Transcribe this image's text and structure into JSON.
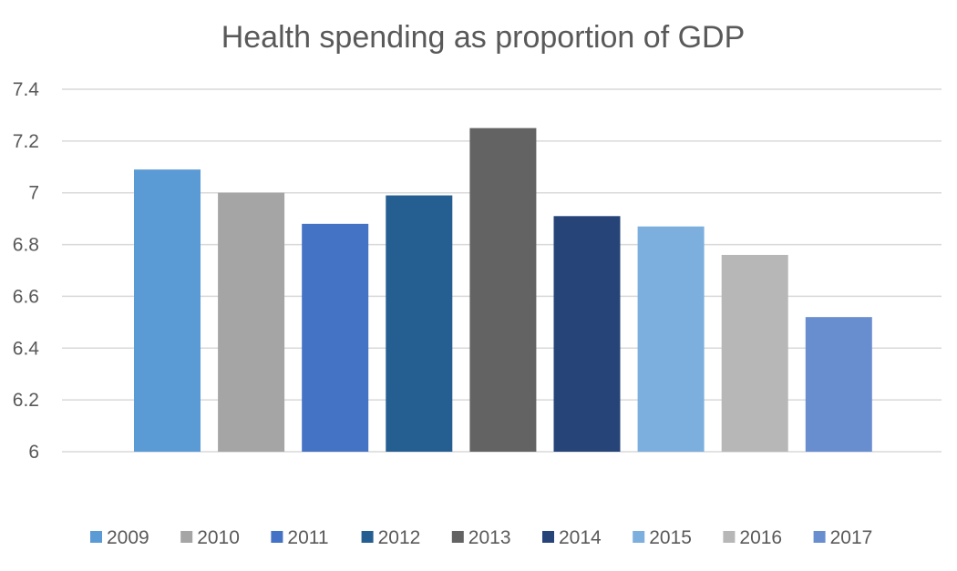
{
  "chart_data": {
    "type": "bar",
    "title": "Health spending as proportion of GDP",
    "xlabel": "",
    "ylabel": "",
    "ylim": [
      6,
      7.4
    ],
    "yticks": [
      6,
      6.2,
      6.4,
      6.6,
      6.8,
      7,
      7.2,
      7.4
    ],
    "ytick_labels": [
      "6",
      "6.2",
      "6.4",
      "6.6",
      "6.8",
      "7",
      "7.2",
      "7.4"
    ],
    "grid": true,
    "legend_position": "bottom",
    "series": [
      {
        "name": "2009",
        "value": 7.09,
        "color": "#5b9bd5"
      },
      {
        "name": "2010",
        "value": 7.0,
        "color": "#a5a5a5"
      },
      {
        "name": "2011",
        "value": 6.88,
        "color": "#4472c4"
      },
      {
        "name": "2012",
        "value": 6.99,
        "color": "#255e91"
      },
      {
        "name": "2013",
        "value": 7.25,
        "color": "#636363"
      },
      {
        "name": "2014",
        "value": 6.91,
        "color": "#264478"
      },
      {
        "name": "2015",
        "value": 6.87,
        "color": "#7cafdd"
      },
      {
        "name": "2016",
        "value": 6.76,
        "color": "#b7b7b7"
      },
      {
        "name": "2017",
        "value": 6.52,
        "color": "#698ed0"
      }
    ]
  }
}
